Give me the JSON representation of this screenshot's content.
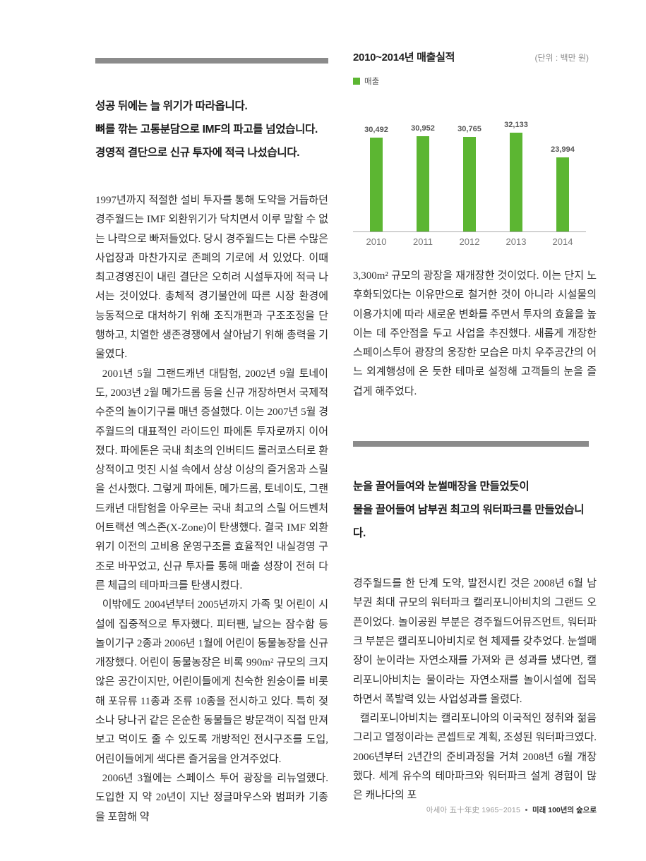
{
  "left_column": {
    "headline_lines": [
      "성공 뒤에는 늘 위기가 따라옵니다.",
      "뼈를 깎는 고통분담으로 IMF의 파고를 넘었습니다.",
      "경영적 결단으로 신규 투자에 적극 나섰습니다."
    ],
    "paragraphs": {
      "p1": "1997년까지 적절한 설비 투자를 통해 도약을 거듭하던 경주월드는 IMF 외환위기가 닥치면서 이루 말할 수 없는 나락으로 빠져들었다. 당시 경주월드는 다른 수많은 사업장과 마찬가지로 존폐의 기로에 서 있었다. 이때 최고경영진이 내린 결단은 오히려 시설투자에 적극 나서는 것이었다. 총체적 경기불안에 따른 시장 환경에 능동적으로 대처하기 위해 조직개편과 구조조정을 단행하고, 치열한 생존경쟁에서 살아남기 위해 총력을 기울였다.",
      "p2": "2001년 5월 그랜드캐년 대탐험, 2002년 9월 토네이도, 2003년 2월 메가드롭 등을 신규 개장하면서 국제적 수준의 놀이기구를 매년 증설했다. 이는 2007년 5월 경주월드의 대표적인 라이드인 파에톤 투자로까지 이어졌다. 파에톤은 국내 최초의 인버티드 롤러코스터로 환상적이고 멋진 시설 속에서 상상 이상의 즐거움과 스릴을 선사했다. 그렇게 파에톤, 메가드롭, 토네이도, 그랜드캐년 대탐험을 아우르는 국내 최고의 스릴 어드벤처 어트랙션 엑스존(X-Zone)이 탄생했다. 결국 IMF 외환위기 이전의 고비용 운영구조를 효율적인 내실경영 구조로 바꾸었고, 신규 투자를 통해 매출 성장이 전혀 다른 체급의 테마파크를 탄생시켰다.",
      "p3": "이밖에도 2004년부터 2005년까지 가족 및 어린이 시설에 집중적으로 투자했다. 피터팬, 날으는 잠수함 등 놀이기구 2종과 2006년 1월에 어린이 동물농장을 신규 개장했다. 어린이 동물농장은 비록 990m² 규모의 크지 않은 공간이지만, 어린이들에게 친숙한 원숭이를 비롯해 포유류 11종과 조류 10종을 전시하고 있다. 특히 젖소나 당나귀 같은 온순한 동물들은 방문객이 직접 만져보고 먹이도 줄 수 있도록 개방적인 전시구조를 도입, 어린이들에게 색다른 즐거움을 안겨주었다.",
      "p4": "2006년 3월에는 스페이스 투어 광장을 리뉴얼했다. 도입한 지 약 20년이 지난 정글마우스와 범퍼카 기종을 포함해 약"
    }
  },
  "right_column": {
    "paragraph_top": "3,300m² 규모의 광장을 재개장한 것이었다. 이는 단지 노후화되었다는 이유만으로 철거한 것이 아니라 시설물의 이용가치에 따라 새로운 변화를 주면서 투자의 효율을 높이는 데 주안점을 두고 사업을 추진했다. 새롭게 개장한 스페이스투어 광장의 웅장한 모습은 마치 우주공간의 어느 외계행성에 온 듯한 테마로 설정해 고객들의 눈을 즐겁게 해주었다.",
    "headline_lines": [
      "눈을 끌어들여와 눈썰매장을 만들었듯이",
      "물을 끌어들여 남부권 최고의 워터파크를 만들었습니다."
    ],
    "paragraphs": {
      "p1": "경주월드를 한 단계 도약, 발전시킨 것은 2008년 6월 남부권 최대 규모의 워터파크 캘리포니아비치의 그랜드 오픈이었다. 놀이공원 부분은 경주월드어뮤즈먼트, 워터파크 부분은 캘리포니아비치로 현 체제를 갖추었다. 눈썰매장이 눈이라는 자연소재를 가져와 큰 성과를 냈다면, 캘리포니아비치는 물이라는 자연소재를 놀이시설에 접목하면서 폭발력 있는 사업성과를 올렸다.",
      "p2": "캘리포니아비치는 캘리포니아의 이국적인 정취와 젊음 그리고 열정이라는 콘셉트로 계획, 조성된 워터파크였다. 2006년부터 2년간의 준비과정을 거쳐 2008년 6월 개장했다. 세계 유수의 테마파크와 워터파크 설계 경험이 많은 캐나다의 포"
    }
  },
  "footer": {
    "book_title": "아세아 五十年史 1965~2015",
    "section_title": "미래 100년의 숲으로"
  },
  "chart_data": {
    "type": "bar",
    "title": "2010~2014년 매출실적",
    "unit_note": "(단위 : 백만 원)",
    "legend": [
      {
        "label": "매출",
        "color": "#5cb632"
      }
    ],
    "categories": [
      "2010",
      "2011",
      "2012",
      "2013",
      "2014"
    ],
    "series": [
      {
        "name": "매출",
        "values": [
          30492,
          30952,
          30765,
          32133,
          23994
        ]
      }
    ],
    "value_labels": [
      "30,492",
      "30,952",
      "30,765",
      "32,133",
      "23,994"
    ],
    "bar_color": "#5cb632",
    "ylim": [
      0,
      35000
    ],
    "grid": false,
    "legend_position": "top-left",
    "xlabel": "",
    "ylabel": ""
  }
}
